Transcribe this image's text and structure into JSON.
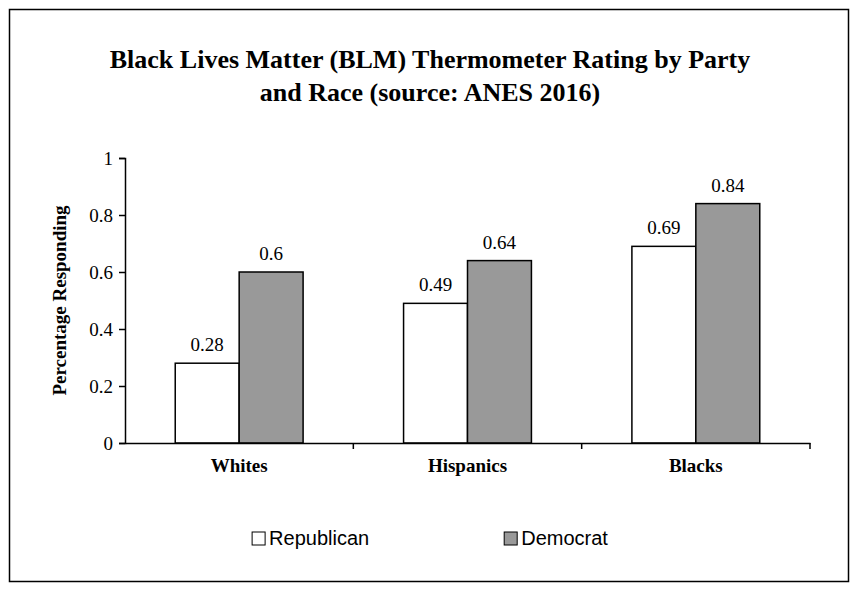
{
  "chart_data": {
    "type": "bar",
    "title": "Black Lives Matter (BLM) Thermometer Rating by Party and Race (source: ANES 2016)",
    "y_label": "Percentage Responding",
    "categories": [
      "Whites",
      "Hispanics",
      "Blacks"
    ],
    "series": [
      {
        "name": "Republican",
        "color": "#ffffff",
        "values": [
          0.28,
          0.49,
          0.69
        ]
      },
      {
        "name": "Democrat",
        "color": "#999999",
        "values": [
          0.6,
          0.64,
          0.84
        ]
      }
    ],
    "ylim": [
      0,
      1
    ],
    "yticks": [
      0,
      0.2,
      0.4,
      0.6,
      0.8,
      1
    ],
    "grid": false,
    "legend": "bottom",
    "data_labels": true
  }
}
